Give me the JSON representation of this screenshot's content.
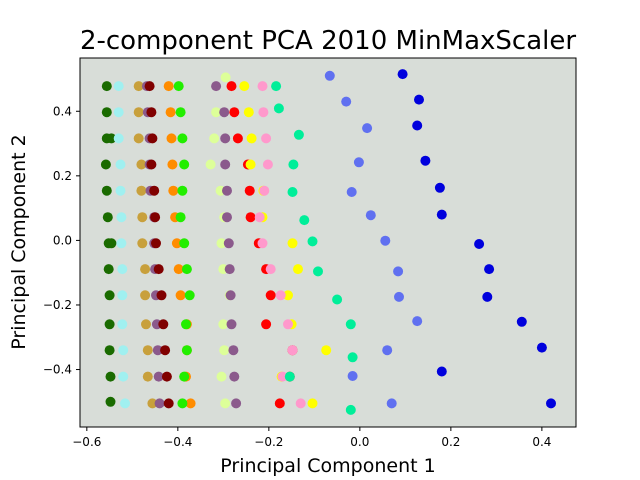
{
  "chart_data": {
    "type": "scatter",
    "title": "2-component PCA 2010 MinMaxScaler",
    "xlabel": "Principal Component 1",
    "ylabel": "Principal Component 2",
    "xlim": [
      -0.615,
      0.475
    ],
    "ylim": [
      -0.578,
      0.565
    ],
    "xticks": [
      -0.6,
      -0.4,
      -0.2,
      0.0,
      0.2,
      0.4
    ],
    "xtick_labels": [
      "−0.6",
      "−0.4",
      "−0.2",
      "0.0",
      "0.2",
      "0.4"
    ],
    "yticks": [
      -0.4,
      -0.2,
      0.0,
      0.2,
      0.4
    ],
    "ytick_labels": [
      "−0.4",
      "−0.2",
      "0.0",
      "0.2",
      "0.4"
    ],
    "grid": false,
    "plot_background": "#d8ddd8",
    "series": [
      {
        "color": "#1a6b00",
        "x": [
          -0.556,
          -0.556,
          -0.556,
          -0.558,
          -0.556,
          -0.554,
          -0.552,
          -0.552,
          -0.55,
          -0.55,
          -0.55,
          -0.548,
          -0.548,
          -0.546,
          -0.546
        ],
        "y": [
          0.478,
          0.397,
          0.316,
          0.235,
          0.154,
          0.072,
          -0.009,
          -0.089,
          -0.17,
          -0.26,
          -0.34,
          -0.422,
          -0.5,
          0.316,
          -0.009
        ]
      },
      {
        "color": "#a0f0f0",
        "x": [
          -0.53,
          -0.53,
          -0.53,
          -0.526,
          -0.526,
          -0.524,
          -0.524,
          -0.522,
          -0.522,
          -0.522,
          -0.52,
          -0.52,
          -0.516
        ],
        "y": [
          0.478,
          0.397,
          0.316,
          0.235,
          0.154,
          0.072,
          -0.009,
          -0.089,
          -0.17,
          -0.26,
          -0.34,
          -0.422,
          -0.505
        ]
      },
      {
        "color": "#c8a03c",
        "x": [
          -0.486,
          -0.486,
          -0.486,
          -0.48,
          -0.48,
          -0.478,
          -0.478,
          -0.472,
          -0.472,
          -0.47,
          -0.466,
          -0.466,
          -0.456
        ],
        "y": [
          0.478,
          0.397,
          0.316,
          0.235,
          0.154,
          0.072,
          -0.009,
          -0.089,
          -0.17,
          -0.26,
          -0.34,
          -0.422,
          -0.505
        ]
      },
      {
        "color": "#8b5a8c",
        "x": [
          -0.468,
          -0.466,
          -0.462,
          -0.462,
          -0.46,
          -0.452,
          -0.452,
          -0.45,
          -0.448,
          -0.446,
          -0.444,
          -0.442,
          -0.44
        ],
        "y": [
          0.478,
          0.397,
          0.316,
          0.235,
          0.154,
          0.072,
          -0.009,
          -0.089,
          -0.17,
          -0.26,
          -0.34,
          -0.422,
          -0.505
        ]
      },
      {
        "color": "#800000",
        "x": [
          -0.462,
          -0.458,
          -0.456,
          -0.458,
          -0.452,
          -0.45,
          -0.448,
          -0.442,
          -0.436,
          -0.432,
          -0.428,
          -0.424,
          -0.42
        ],
        "y": [
          0.478,
          0.397,
          0.316,
          0.235,
          0.154,
          0.072,
          -0.009,
          -0.089,
          -0.17,
          -0.26,
          -0.34,
          -0.422,
          -0.505
        ]
      },
      {
        "color": "#ff8c00",
        "x": [
          -0.42,
          -0.416,
          -0.414,
          -0.412,
          -0.41,
          -0.406,
          -0.402,
          -0.398,
          -0.394,
          -0.38,
          -0.38,
          -0.382,
          -0.372
        ],
        "y": [
          0.478,
          0.397,
          0.316,
          0.235,
          0.154,
          0.072,
          -0.009,
          -0.089,
          -0.17,
          -0.26,
          -0.34,
          -0.422,
          -0.505
        ]
      },
      {
        "color": "#22ee00",
        "x": [
          -0.398,
          -0.394,
          -0.39,
          -0.386,
          -0.39,
          -0.394,
          -0.386,
          -0.38,
          -0.374,
          -0.382,
          -0.38,
          -0.386,
          -0.39
        ],
        "y": [
          0.478,
          0.397,
          0.316,
          0.235,
          0.154,
          0.072,
          -0.009,
          -0.089,
          -0.17,
          -0.26,
          -0.34,
          -0.422,
          -0.505
        ]
      },
      {
        "color": "#ddff99",
        "x": [
          -0.295,
          -0.316,
          -0.32,
          -0.328,
          -0.306,
          -0.298,
          -0.304,
          -0.3,
          -0.286,
          -0.3,
          -0.298,
          -0.304,
          -0.296
        ],
        "y": [
          0.505,
          0.397,
          0.316,
          0.235,
          0.154,
          0.072,
          -0.009,
          -0.089,
          -0.17,
          -0.26,
          -0.34,
          -0.422,
          -0.505
        ]
      },
      {
        "color": "#8b5a8c",
        "x": [
          -0.316,
          -0.298,
          -0.296,
          -0.296,
          -0.292,
          -0.292,
          -0.288,
          -0.286,
          -0.284,
          -0.282,
          -0.278,
          -0.276,
          -0.272
        ],
        "y": [
          0.478,
          0.397,
          0.316,
          0.235,
          0.154,
          0.072,
          -0.009,
          -0.089,
          -0.17,
          -0.26,
          -0.34,
          -0.422,
          -0.505
        ]
      },
      {
        "color": "#ff0000",
        "x": [
          -0.282,
          -0.276,
          -0.268,
          -0.246,
          -0.242,
          -0.24,
          -0.222,
          -0.206,
          -0.196,
          -0.206,
          -0.148,
          -0.154,
          -0.176
        ],
        "y": [
          0.478,
          0.397,
          0.316,
          0.235,
          0.154,
          0.072,
          -0.009,
          -0.089,
          -0.17,
          -0.26,
          -0.34,
          -0.422,
          -0.505
        ]
      },
      {
        "color": "#ffff00",
        "x": [
          -0.254,
          -0.244,
          -0.238,
          -0.24,
          -0.212,
          -0.214,
          -0.148,
          -0.136,
          -0.158,
          -0.15,
          -0.074,
          -0.172,
          -0.104
        ],
        "y": [
          0.478,
          0.397,
          0.316,
          0.235,
          0.154,
          0.072,
          -0.009,
          -0.089,
          -0.17,
          -0.26,
          -0.34,
          -0.422,
          -0.505
        ]
      },
      {
        "color": "#ff99cc",
        "x": [
          -0.214,
          -0.212,
          -0.206,
          -0.202,
          -0.21,
          -0.22,
          -0.214,
          -0.196,
          -0.174,
          -0.158,
          -0.148,
          -0.17,
          -0.13
        ],
        "y": [
          0.478,
          0.397,
          0.316,
          0.235,
          0.154,
          0.072,
          -0.009,
          -0.089,
          -0.17,
          -0.26,
          -0.34,
          -0.422,
          -0.505
        ]
      },
      {
        "color": "#00ee99",
        "x": [
          -0.184,
          -0.178,
          -0.134,
          -0.146,
          -0.148,
          -0.122,
          -0.104,
          -0.092,
          -0.05,
          -0.02,
          -0.016,
          -0.154,
          -0.02
        ],
        "y": [
          0.478,
          0.409,
          0.327,
          0.235,
          0.15,
          0.063,
          -0.003,
          -0.096,
          -0.183,
          -0.26,
          -0.362,
          -0.422,
          -0.525
        ]
      },
      {
        "color": "#6070f0",
        "x": [
          -0.066,
          -0.03,
          0.016,
          -0.002,
          -0.018,
          0.024,
          0.056,
          0.084,
          0.086,
          0.126,
          0.06,
          -0.016,
          0.07
        ],
        "y": [
          0.51,
          0.43,
          0.348,
          0.242,
          0.15,
          0.078,
          -0.001,
          -0.096,
          -0.175,
          -0.25,
          -0.34,
          -0.42,
          -0.505
        ]
      },
      {
        "color": "#0000dd",
        "x": [
          0.094,
          0.13,
          0.126,
          0.144,
          0.176,
          0.18,
          0.262,
          0.284,
          0.28,
          0.356,
          0.4,
          0.18,
          0.42
        ],
        "y": [
          0.515,
          0.436,
          0.356,
          0.247,
          0.163,
          0.08,
          -0.011,
          -0.089,
          -0.175,
          -0.252,
          -0.332,
          -0.406,
          -0.505
        ]
      }
    ]
  }
}
